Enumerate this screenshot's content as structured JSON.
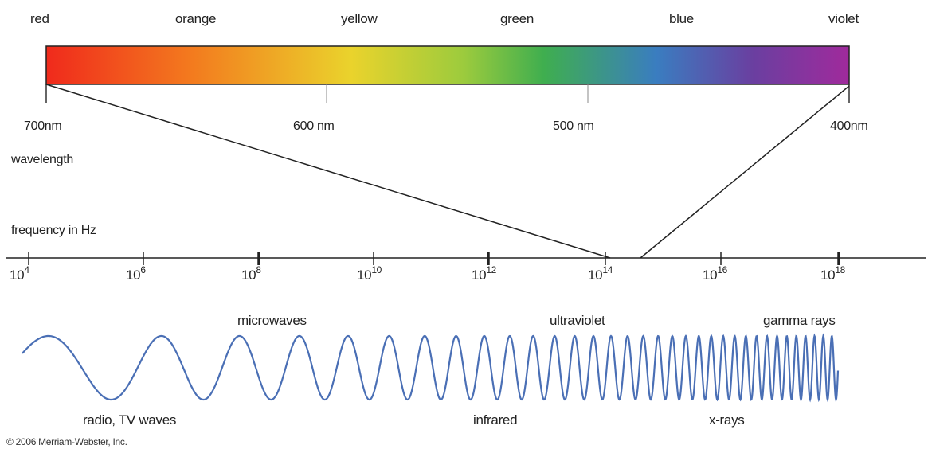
{
  "colors": {
    "labels": [
      "red",
      "orange",
      "yellow",
      "green",
      "blue",
      "violet"
    ],
    "gradient": [
      "#f02a1c",
      "#f37a1e",
      "#ead32c",
      "#9ccb3d",
      "#3fae4f",
      "#3a7dc0",
      "#6a3fa0",
      "#a02a9c"
    ]
  },
  "wavelength": {
    "ticks": [
      "700nm",
      "600 nm",
      "500 nm",
      "400nm"
    ],
    "label": "wavelength"
  },
  "frequency": {
    "label": "frequency in Hz",
    "ticks": [
      {
        "base": "10",
        "exp": "4"
      },
      {
        "base": "10",
        "exp": "6"
      },
      {
        "base": "10",
        "exp": "8"
      },
      {
        "base": "10",
        "exp": "10"
      },
      {
        "base": "10",
        "exp": "12"
      },
      {
        "base": "10",
        "exp": "14"
      },
      {
        "base": "10",
        "exp": "16"
      },
      {
        "base": "10",
        "exp": "18"
      }
    ]
  },
  "regions": {
    "microwaves": "microwaves",
    "ultraviolet": "ultraviolet",
    "gamma": "gamma rays",
    "radio": "radio, TV waves",
    "infrared": "infrared",
    "xrays": "x-rays"
  },
  "copyright": "© 2006 Merriam-Webster, Inc.",
  "wave_color": "#4a6fb5"
}
